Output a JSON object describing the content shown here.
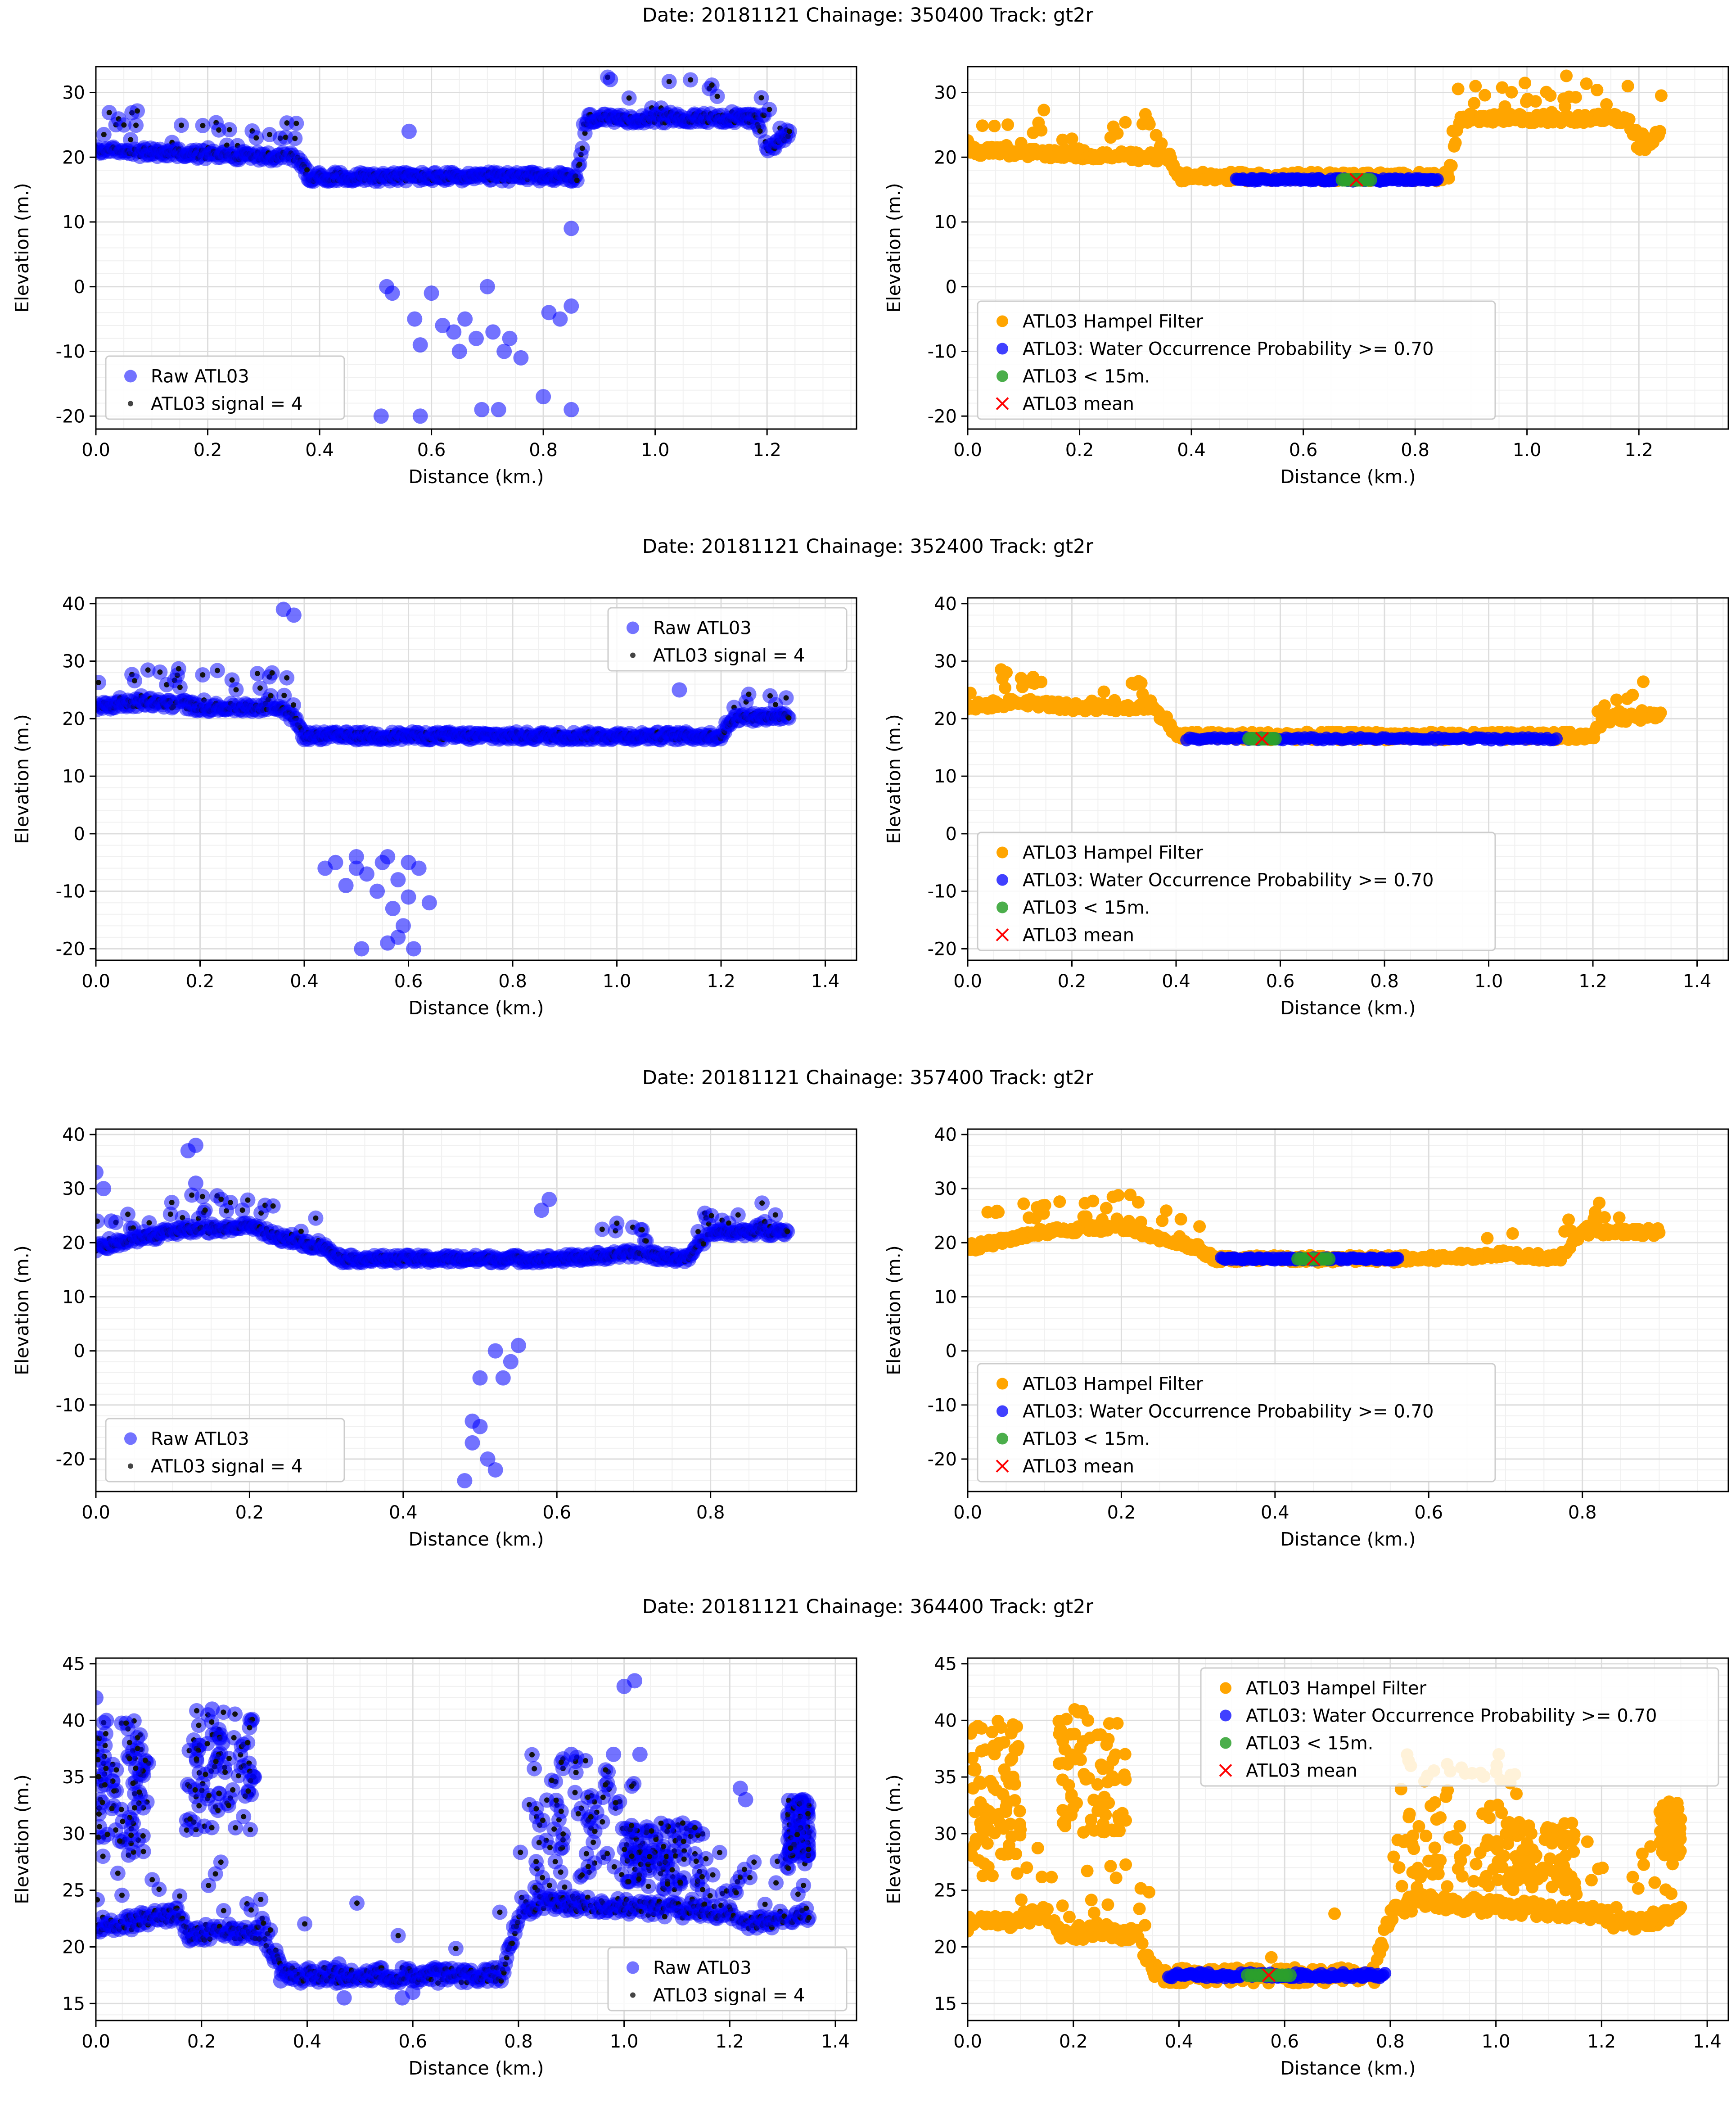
{
  "colors": {
    "raw": "#0000ff",
    "signal": "#111111",
    "hampel": "#ffa500",
    "water": "#0000ff",
    "lt15": "#2ca02c",
    "mean": "#ff0000",
    "grid": "#dddddd",
    "minor_grid": "#f0f0f0"
  },
  "legend_labels": {
    "raw": "Raw ATL03",
    "signal": "ATL03 signal = 4",
    "hampel": "ATL03 Hampel Filter",
    "water": "ATL03: Water Occurrence Probability >= 0.70",
    "lt15": "ATL03 < 15m.",
    "mean": "ATL03 mean"
  },
  "chart_data": [
    {
      "type": "scatter",
      "title": "Date: 20181121 Chainage: 350400 Track: gt2r",
      "xlabel": "Distance (km.)",
      "ylabel": "Elevation (m.)",
      "xlim": [
        0.0,
        1.36
      ],
      "ylim": [
        -22,
        34
      ],
      "xticks": [
        0.0,
        0.2,
        0.4,
        0.6,
        0.8,
        1.0,
        1.2
      ],
      "yticks": [
        -20,
        -10,
        0,
        10,
        20,
        30
      ],
      "left_legend": "lower-left",
      "right_legend": "lower-left",
      "profile": [
        [
          0.0,
          21
        ],
        [
          0.35,
          20
        ],
        [
          0.36,
          20
        ],
        [
          0.38,
          17
        ],
        [
          0.86,
          17
        ],
        [
          0.88,
          26
        ],
        [
          1.18,
          26
        ],
        [
          1.2,
          21
        ],
        [
          1.24,
          24
        ]
      ],
      "outliers": [
        [
          0.52,
          0
        ],
        [
          0.53,
          -1
        ],
        [
          0.57,
          -5
        ],
        [
          0.58,
          -9
        ],
        [
          0.6,
          -1
        ],
        [
          0.62,
          -6
        ],
        [
          0.64,
          -7
        ],
        [
          0.65,
          -10
        ],
        [
          0.66,
          -5
        ],
        [
          0.68,
          -8
        ],
        [
          0.69,
          -19
        ],
        [
          0.7,
          0
        ],
        [
          0.71,
          -7
        ],
        [
          0.73,
          -10
        ],
        [
          0.74,
          -8
        ],
        [
          0.76,
          -11
        ],
        [
          0.72,
          -19
        ],
        [
          0.51,
          -20
        ],
        [
          0.8,
          -17
        ],
        [
          0.81,
          -4
        ],
        [
          0.83,
          -5
        ],
        [
          0.85,
          -3
        ],
        [
          0.85,
          -19
        ],
        [
          0.56,
          24
        ],
        [
          0.85,
          9
        ],
        [
          0.92,
          32
        ],
        [
          0.58,
          -20
        ]
      ],
      "water": [
        0.48,
        0.84,
        16.5
      ],
      "lt15": [
        0.67,
        0.72
      ],
      "mean": [
        0.695,
        16.5
      ]
    },
    {
      "type": "scatter",
      "title": "Date: 20181121 Chainage: 352400 Track: gt2r",
      "xlabel": "Distance (km.)",
      "ylabel": "Elevation (m.)",
      "xlim": [
        0.0,
        1.46
      ],
      "ylim": [
        -22,
        41
      ],
      "xticks": [
        0.0,
        0.2,
        0.4,
        0.6,
        0.8,
        1.0,
        1.2,
        1.4
      ],
      "yticks": [
        -20,
        -10,
        0,
        10,
        20,
        30,
        40
      ],
      "left_legend": "upper-right",
      "right_legend": "lower-left",
      "profile": [
        [
          0.0,
          22
        ],
        [
          0.1,
          23
        ],
        [
          0.2,
          22
        ],
        [
          0.35,
          22
        ],
        [
          0.38,
          20
        ],
        [
          0.4,
          17
        ],
        [
          1.2,
          17
        ],
        [
          1.22,
          20
        ],
        [
          1.33,
          20.5
        ]
      ],
      "outliers": [
        [
          0.44,
          -6
        ],
        [
          0.46,
          -5
        ],
        [
          0.48,
          -9
        ],
        [
          0.5,
          -4
        ],
        [
          0.51,
          -20
        ],
        [
          0.52,
          -7
        ],
        [
          0.54,
          -10
        ],
        [
          0.55,
          -5
        ],
        [
          0.56,
          -19
        ],
        [
          0.57,
          -13
        ],
        [
          0.58,
          -8
        ],
        [
          0.59,
          -16
        ],
        [
          0.6,
          -11
        ],
        [
          0.61,
          -20
        ],
        [
          0.62,
          -6
        ],
        [
          0.64,
          -12
        ],
        [
          0.5,
          -6
        ],
        [
          0.56,
          -4
        ],
        [
          0.6,
          -5
        ],
        [
          0.58,
          -18
        ],
        [
          1.12,
          25
        ],
        [
          0.36,
          39
        ],
        [
          0.38,
          38
        ]
      ],
      "water": [
        0.42,
        1.13,
        16.5
      ],
      "lt15": [
        0.54,
        0.59
      ],
      "mean": [
        0.565,
        16.5
      ]
    },
    {
      "type": "scatter",
      "title": "Date: 20181121 Chainage: 357400 Track: gt2r",
      "xlabel": "Distance (km.)",
      "ylabel": "Elevation (m.)",
      "xlim": [
        0.0,
        0.99
      ],
      "ylim": [
        -26,
        41
      ],
      "xticks": [
        0.0,
        0.2,
        0.4,
        0.6,
        0.8
      ],
      "yticks": [
        -20,
        -10,
        0,
        10,
        20,
        30,
        40
      ],
      "left_legend": "lower-left",
      "right_legend": "lower-left",
      "profile": [
        [
          0.0,
          19
        ],
        [
          0.1,
          22
        ],
        [
          0.2,
          23
        ],
        [
          0.24,
          21
        ],
        [
          0.3,
          19
        ],
        [
          0.32,
          17
        ],
        [
          0.6,
          17
        ],
        [
          0.7,
          18
        ],
        [
          0.77,
          17
        ],
        [
          0.8,
          22
        ],
        [
          0.9,
          22
        ]
      ],
      "outliers": [
        [
          0.48,
          -24
        ],
        [
          0.49,
          -17
        ],
        [
          0.49,
          -13
        ],
        [
          0.5,
          -14
        ],
        [
          0.5,
          -5
        ],
        [
          0.51,
          -20
        ],
        [
          0.52,
          -22
        ],
        [
          0.52,
          0
        ],
        [
          0.53,
          -5
        ],
        [
          0.54,
          -2
        ],
        [
          0.55,
          1
        ],
        [
          0.58,
          26
        ],
        [
          0.59,
          28
        ],
        [
          0.0,
          33
        ],
        [
          0.01,
          30
        ],
        [
          0.12,
          37
        ],
        [
          0.13,
          38
        ],
        [
          0.13,
          31
        ],
        [
          0.02,
          24
        ]
      ],
      "water": [
        0.33,
        0.56,
        17
      ],
      "lt15": [
        0.43,
        0.47
      ],
      "mean": [
        0.45,
        17
      ]
    },
    {
      "type": "scatter",
      "title": "Date: 20181121 Chainage: 364400 Track: gt2r",
      "xlabel": "Distance (km.)",
      "ylabel": "Elevation (m.)",
      "xlim": [
        0.0,
        1.44
      ],
      "ylim": [
        13.5,
        45.5
      ],
      "xticks": [
        0.0,
        0.2,
        0.4,
        0.6,
        0.8,
        1.0,
        1.2,
        1.4
      ],
      "yticks": [
        15,
        20,
        25,
        30,
        35,
        40,
        45
      ],
      "left_legend": "lower-right",
      "right_legend": "top-right",
      "profile": [
        [
          0.0,
          22
        ],
        [
          0.05,
          22
        ],
        [
          0.15,
          23
        ],
        [
          0.18,
          21
        ],
        [
          0.25,
          21.5
        ],
        [
          0.32,
          21
        ],
        [
          0.36,
          17.5
        ],
        [
          0.77,
          17.5
        ],
        [
          0.8,
          23
        ],
        [
          0.85,
          24
        ],
        [
          1.2,
          23
        ],
        [
          1.23,
          22
        ],
        [
          1.3,
          22.5
        ],
        [
          1.35,
          23
        ]
      ],
      "outliers": [
        [
          0.0,
          42
        ],
        [
          0.02,
          40
        ],
        [
          0.22,
          41
        ],
        [
          0.24,
          38
        ],
        [
          0.3,
          35
        ],
        [
          0.98,
          37
        ],
        [
          1.0,
          43
        ],
        [
          1.02,
          43.5
        ],
        [
          1.03,
          37
        ],
        [
          1.22,
          34
        ],
        [
          1.23,
          33
        ],
        [
          0.47,
          15.5
        ],
        [
          0.58,
          15.5
        ],
        [
          0.6,
          16
        ],
        [
          0.46,
          18.5
        ],
        [
          0.9,
          37
        ],
        [
          0.35,
          17
        ],
        [
          1.33,
          31
        ],
        [
          1.34,
          33
        ]
      ],
      "clouds": [
        [
          0.0,
          0.1,
          28,
          40
        ],
        [
          0.17,
          0.3,
          30,
          41
        ],
        [
          0.82,
          1.05,
          25,
          37
        ],
        [
          1.0,
          1.15,
          25,
          31
        ],
        [
          1.31,
          1.35,
          28,
          33
        ]
      ],
      "water": [
        0.38,
        0.79,
        17.5
      ],
      "lt15": [
        0.53,
        0.61
      ],
      "mean": [
        0.57,
        17.5
      ]
    }
  ]
}
